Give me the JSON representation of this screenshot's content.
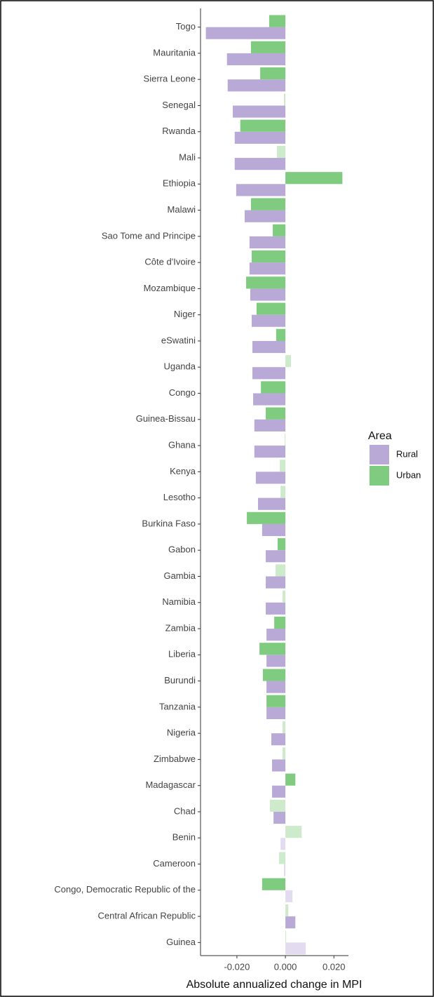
{
  "chart_data": {
    "type": "hbar",
    "x_label": "Absolute annualized change in MPI",
    "legend_title": "Area",
    "categories": [
      "Togo",
      "Mauritania",
      "Sierra Leone",
      "Senegal",
      "Rwanda",
      "Mali",
      "Ethiopia",
      "Malawi",
      "Sao Tome and Principe",
      "Côte d'Ivoire",
      "Mozambique",
      "Niger",
      "eSwatini",
      "Uganda",
      "Congo",
      "Guinea-Bissau",
      "Ghana",
      "Kenya",
      "Lesotho",
      "Burkina Faso",
      "Gabon",
      "Gambia",
      "Namibia",
      "Zambia",
      "Liberia",
      "Burundi",
      "Tanzania",
      "Nigeria",
      "Zimbabwe",
      "Madagascar",
      "Chad",
      "Benin",
      "Cameroon",
      "Congo, Democratic Republic of the",
      "Central African Republic",
      "Guinea"
    ],
    "series": [
      {
        "name": "Rural",
        "color": "#b9a9d7",
        "values": [
          -0.0328,
          -0.0241,
          -0.0238,
          -0.0217,
          -0.0209,
          -0.0209,
          -0.0203,
          -0.0168,
          -0.0148,
          -0.0148,
          -0.0145,
          -0.0139,
          -0.0136,
          -0.0136,
          -0.0133,
          -0.0128,
          -0.0128,
          -0.0122,
          -0.0113,
          -0.0096,
          -0.0081,
          -0.0081,
          -0.0081,
          -0.0078,
          -0.0078,
          -0.0078,
          -0.0078,
          -0.0058,
          -0.0055,
          -0.0055,
          -0.0049,
          -0.002,
          -0.0006,
          0.0029,
          0.0041,
          0.0084
        ],
        "colors": [
          "#b9a9d7",
          "#b9a9d7",
          "#b9a9d7",
          "#b9a9d7",
          "#b9a9d7",
          "#b9a9d7",
          "#b9a9d7",
          "#b9a9d7",
          "#b9a9d7",
          "#b9a9d7",
          "#b9a9d7",
          "#b9a9d7",
          "#b9a9d7",
          "#b9a9d7",
          "#b9a9d7",
          "#b9a9d7",
          "#b9a9d7",
          "#b9a9d7",
          "#b9a9d7",
          "#b9a9d7",
          "#b9a9d7",
          "#b9a9d7",
          "#b9a9d7",
          "#b9a9d7",
          "#b9a9d7",
          "#b9a9d7",
          "#b9a9d7",
          "#b9a9d7",
          "#b9a9d7",
          "#b9a9d7",
          "#b9a9d7",
          "#e3dbef",
          "#e3dbef",
          "#e3dbef",
          "#b9a9d7",
          "#e3dbef"
        ]
      },
      {
        "name": "Urban",
        "color": "#7fcb7f",
        "values": [
          -0.0067,
          -0.0142,
          -0.0104,
          -0.0006,
          -0.0186,
          -0.0035,
          0.0235,
          -0.0142,
          -0.0052,
          -0.0139,
          -0.0162,
          -0.0119,
          -0.0038,
          0.0023,
          -0.0101,
          -0.0081,
          -0.0003,
          -0.0023,
          -0.002,
          -0.0159,
          -0.0032,
          -0.0041,
          -0.0012,
          -0.0046,
          -0.0107,
          -0.0093,
          -0.0078,
          -0.0012,
          -0.0012,
          0.0041,
          -0.0064,
          0.0067,
          -0.0026,
          -0.0096,
          0.0012,
          0.0003
        ],
        "colors": [
          "#7fcb7f",
          "#7fcb7f",
          "#7fcb7f",
          "#cdeacb",
          "#7fcb7f",
          "#cdeacb",
          "#7fcb7f",
          "#7fcb7f",
          "#7fcb7f",
          "#7fcb7f",
          "#7fcb7f",
          "#7fcb7f",
          "#7fcb7f",
          "#cdeacb",
          "#7fcb7f",
          "#7fcb7f",
          "#cdeacb",
          "#cdeacb",
          "#cdeacb",
          "#7fcb7f",
          "#7fcb7f",
          "#cdeacb",
          "#cdeacb",
          "#7fcb7f",
          "#7fcb7f",
          "#7fcb7f",
          "#7fcb7f",
          "#cdeacb",
          "#cdeacb",
          "#7fcb7f",
          "#cdeacb",
          "#cdeacb",
          "#cdeacb",
          "#7fcb7f",
          "#cdeacb",
          "#cdeacb"
        ]
      }
    ],
    "xlim": [
      -0.035,
      0.026
    ],
    "xticks": [
      {
        "value": -0.02,
        "label": "-0.020"
      },
      {
        "value": 0,
        "label": "0.000"
      },
      {
        "value": 0.02,
        "label": "0.020"
      }
    ],
    "grid": false,
    "legend_position": "right"
  }
}
